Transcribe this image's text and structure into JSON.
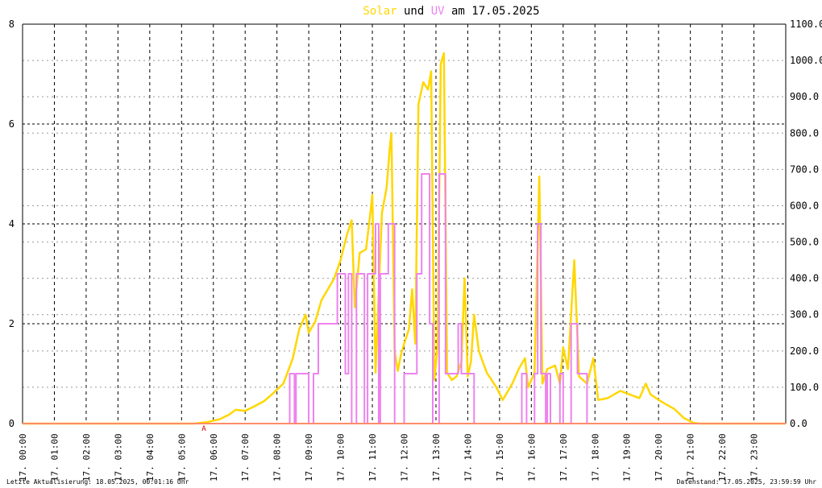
{
  "chart_data": {
    "type": "line",
    "title": {
      "part1": "Solar",
      "part2": " und ",
      "part3": "UV",
      "part4": " am 17.05.2025"
    },
    "xlabel": "",
    "ylabel_left": "",
    "ylabel_right": "",
    "y_left": {
      "range": [
        0,
        8
      ],
      "ticks": [
        "0",
        "2",
        "4",
        "6",
        "8"
      ]
    },
    "y_right": {
      "range": [
        0,
        1100
      ],
      "ticks": [
        "0.0",
        "100.0",
        "200.0",
        "300.0",
        "400.0",
        "500.0",
        "600.0",
        "700.0",
        "800.0",
        "900.0",
        "1000.0",
        "1100.0"
      ]
    },
    "x_range_hours": [
      0,
      24
    ],
    "x_ticks": [
      "17. 00:00",
      "17. 01:00",
      "17. 02:00",
      "17. 03:00",
      "17. 04:00",
      "17. 05:00",
      "17. 06:00",
      "17. 07:00",
      "17. 08:00",
      "17. 09:00",
      "17. 10:00",
      "17. 11:00",
      "17. 12:00",
      "17. 13:00",
      "17. 14:00",
      "17. 15:00",
      "17. 16:00",
      "17. 17:00",
      "17. 18:00",
      "17. 19:00",
      "17. 20:00",
      "17. 21:00",
      "17. 22:00",
      "17. 23:00"
    ],
    "grid": true,
    "marker_label": "A",
    "colors": {
      "solar": "#ffd700",
      "uv": "#ee82ee",
      "baseline": "#ff8c69",
      "grid": "#000000",
      "marker": "#cc0000"
    },
    "series": [
      {
        "key": "solar",
        "axis": "right",
        "points": [
          [
            0,
            0
          ],
          [
            5.4,
            0
          ],
          [
            5.8,
            4
          ],
          [
            6.2,
            12
          ],
          [
            6.5,
            25
          ],
          [
            6.7,
            38
          ],
          [
            7.0,
            35
          ],
          [
            7.3,
            48
          ],
          [
            7.6,
            62
          ],
          [
            7.9,
            85
          ],
          [
            8.2,
            110
          ],
          [
            8.5,
            180
          ],
          [
            8.7,
            260
          ],
          [
            8.9,
            300
          ],
          [
            9.0,
            250
          ],
          [
            9.2,
            280
          ],
          [
            9.4,
            340
          ],
          [
            9.6,
            370
          ],
          [
            9.8,
            400
          ],
          [
            10.0,
            450
          ],
          [
            10.2,
            520
          ],
          [
            10.35,
            560
          ],
          [
            10.45,
            320
          ],
          [
            10.6,
            470
          ],
          [
            10.8,
            480
          ],
          [
            10.95,
            590
          ],
          [
            11.0,
            630
          ],
          [
            11.1,
            140
          ],
          [
            11.3,
            580
          ],
          [
            11.45,
            650
          ],
          [
            11.55,
            760
          ],
          [
            11.6,
            800
          ],
          [
            11.7,
            200
          ],
          [
            11.8,
            145
          ],
          [
            11.9,
            190
          ],
          [
            12.0,
            220
          ],
          [
            12.15,
            260
          ],
          [
            12.25,
            370
          ],
          [
            12.35,
            220
          ],
          [
            12.45,
            880
          ],
          [
            12.6,
            940
          ],
          [
            12.75,
            920
          ],
          [
            12.85,
            970
          ],
          [
            12.95,
            120
          ],
          [
            13.05,
            210
          ],
          [
            13.15,
            990
          ],
          [
            13.25,
            1020
          ],
          [
            13.35,
            140
          ],
          [
            13.5,
            120
          ],
          [
            13.65,
            130
          ],
          [
            13.8,
            170
          ],
          [
            13.9,
            400
          ],
          [
            14.0,
            130
          ],
          [
            14.1,
            170
          ],
          [
            14.2,
            300
          ],
          [
            14.35,
            200
          ],
          [
            14.6,
            140
          ],
          [
            14.9,
            100
          ],
          [
            15.1,
            65
          ],
          [
            15.4,
            110
          ],
          [
            15.6,
            150
          ],
          [
            15.8,
            180
          ],
          [
            15.9,
            100
          ],
          [
            16.1,
            140
          ],
          [
            16.25,
            680
          ],
          [
            16.35,
            110
          ],
          [
            16.5,
            150
          ],
          [
            16.75,
            160
          ],
          [
            16.9,
            110
          ],
          [
            17.0,
            210
          ],
          [
            17.15,
            150
          ],
          [
            17.35,
            450
          ],
          [
            17.5,
            130
          ],
          [
            17.75,
            110
          ],
          [
            17.95,
            180
          ],
          [
            18.1,
            65
          ],
          [
            18.4,
            70
          ],
          [
            18.8,
            90
          ],
          [
            19.1,
            80
          ],
          [
            19.4,
            70
          ],
          [
            19.6,
            110
          ],
          [
            19.75,
            80
          ],
          [
            20.1,
            60
          ],
          [
            20.5,
            40
          ],
          [
            20.8,
            15
          ],
          [
            21.1,
            2
          ],
          [
            21.3,
            0
          ],
          [
            24,
            0
          ]
        ]
      },
      {
        "key": "uv",
        "axis": "left",
        "points": [
          [
            0,
            0
          ],
          [
            8.4,
            0
          ],
          [
            8.4,
            1
          ],
          [
            8.55,
            1
          ],
          [
            8.55,
            0
          ],
          [
            8.6,
            0
          ],
          [
            8.6,
            1
          ],
          [
            9.0,
            1
          ],
          [
            9.0,
            0
          ],
          [
            9.15,
            0
          ],
          [
            9.15,
            1
          ],
          [
            9.3,
            1
          ],
          [
            9.3,
            2
          ],
          [
            9.9,
            2
          ],
          [
            9.9,
            3
          ],
          [
            10.15,
            3
          ],
          [
            10.15,
            1
          ],
          [
            10.25,
            1
          ],
          [
            10.25,
            3
          ],
          [
            10.35,
            3
          ],
          [
            10.35,
            0
          ],
          [
            10.5,
            0
          ],
          [
            10.5,
            3
          ],
          [
            10.75,
            3
          ],
          [
            10.75,
            0
          ],
          [
            10.85,
            0
          ],
          [
            10.85,
            3
          ],
          [
            11.1,
            3
          ],
          [
            11.1,
            4
          ],
          [
            11.2,
            4
          ],
          [
            11.2,
            0
          ],
          [
            11.25,
            0
          ],
          [
            11.25,
            3
          ],
          [
            11.5,
            3
          ],
          [
            11.5,
            4
          ],
          [
            11.7,
            4
          ],
          [
            11.7,
            0
          ],
          [
            12.0,
            0
          ],
          [
            12.0,
            1
          ],
          [
            12.4,
            1
          ],
          [
            12.4,
            3
          ],
          [
            12.55,
            3
          ],
          [
            12.55,
            5
          ],
          [
            12.8,
            5
          ],
          [
            12.8,
            2
          ],
          [
            12.9,
            2
          ],
          [
            12.9,
            0
          ],
          [
            13.1,
            0
          ],
          [
            13.1,
            5
          ],
          [
            13.3,
            5
          ],
          [
            13.3,
            1
          ],
          [
            13.7,
            1
          ],
          [
            13.7,
            2
          ],
          [
            13.8,
            2
          ],
          [
            13.8,
            1
          ],
          [
            14.2,
            1
          ],
          [
            14.2,
            0
          ],
          [
            15.7,
            0
          ],
          [
            15.7,
            1
          ],
          [
            15.85,
            1
          ],
          [
            15.85,
            0
          ],
          [
            16.1,
            0
          ],
          [
            16.1,
            1
          ],
          [
            16.2,
            1
          ],
          [
            16.2,
            4
          ],
          [
            16.3,
            4
          ],
          [
            16.3,
            1
          ],
          [
            16.45,
            1
          ],
          [
            16.45,
            0
          ],
          [
            16.5,
            0
          ],
          [
            16.5,
            1
          ],
          [
            16.6,
            1
          ],
          [
            16.6,
            0
          ],
          [
            16.9,
            0
          ],
          [
            16.9,
            1
          ],
          [
            17.0,
            1
          ],
          [
            17.0,
            0
          ],
          [
            17.25,
            0
          ],
          [
            17.25,
            2
          ],
          [
            17.45,
            2
          ],
          [
            17.45,
            1
          ],
          [
            17.75,
            1
          ],
          [
            17.75,
            0
          ],
          [
            24,
            0
          ]
        ]
      }
    ]
  },
  "footer": {
    "left": "Letzte Aktualisierung: 18.05.2025, 00:01:16 Uhr",
    "right": "Datenstand: 17.05.2025, 23:59:59 Uhr"
  }
}
